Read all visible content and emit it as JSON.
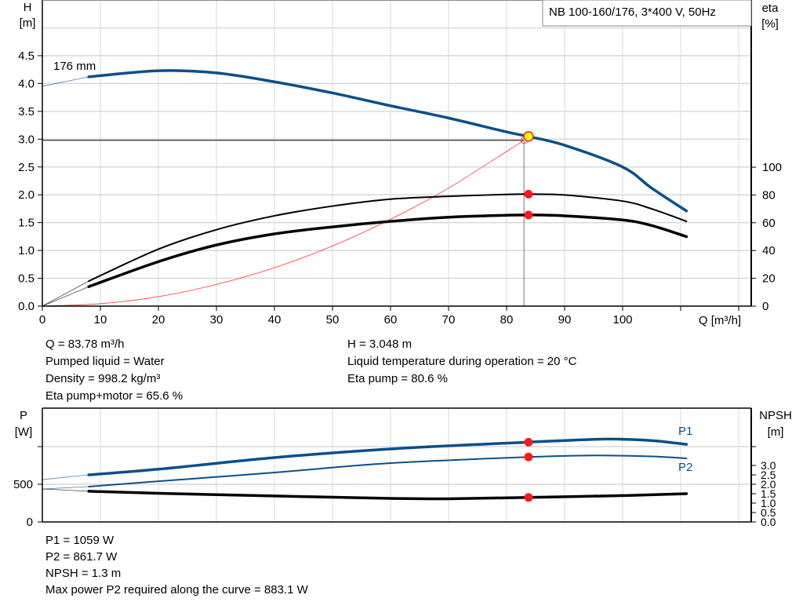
{
  "colors": {
    "head": "#0b4f8a",
    "eta": "#000000",
    "system": "#ff3333",
    "marker": "#ff1a1a",
    "op_point": "#ffff00",
    "grid": "#d9d9d9",
    "power": "#0b4f8a",
    "npsh": "#000000"
  },
  "chart_data": [
    {
      "type": "line",
      "title": "NB 100-160/176, 3*400 V, 50Hz",
      "xlabel": "Q [m³/h]",
      "ylabel_left": [
        "H",
        "[m]"
      ],
      "ylabel_right": [
        "eta",
        "[%]"
      ],
      "xlim": [
        0,
        122
      ],
      "ylim_left": [
        0,
        5.5
      ],
      "ylim_right": [
        0,
        310
      ],
      "xticks": [
        0,
        10,
        20,
        30,
        40,
        50,
        60,
        70,
        80,
        90,
        100,
        110,
        120
      ],
      "xtick_labels": [
        "0",
        "10",
        "20",
        "30",
        "40",
        "50",
        "60",
        "70",
        "80",
        "90",
        "100",
        "",
        ""
      ],
      "yticks_left": [
        "0.0",
        "0.5",
        "1.0",
        "1.5",
        "2.0",
        "2.5",
        "3.0",
        "3.5",
        "4.0",
        "4.5"
      ],
      "yticks_right": [
        "0",
        "20",
        "40",
        "60",
        "80",
        "100"
      ],
      "grid": true,
      "curve_label": "176 mm",
      "series": [
        {
          "id": "head",
          "axis": "left",
          "extrapolated": [
            [
              0,
              3.95
            ],
            [
              8,
              4.12
            ]
          ],
          "points": [
            [
              8,
              4.12
            ],
            [
              20,
              4.23
            ],
            [
              30,
              4.19
            ],
            [
              40,
              4.03
            ],
            [
              50,
              3.83
            ],
            [
              60,
              3.6
            ],
            [
              70,
              3.38
            ],
            [
              80,
              3.13
            ],
            [
              83.78,
              3.048
            ],
            [
              90,
              2.89
            ],
            [
              100,
              2.5
            ],
            [
              105,
              2.12
            ],
            [
              111,
              1.71
            ]
          ]
        },
        {
          "id": "eta-pump",
          "axis": "right",
          "extrapolated": [
            [
              0,
              0
            ],
            [
              8,
              18
            ]
          ],
          "points": [
            [
              8,
              18
            ],
            [
              20,
              41
            ],
            [
              30,
              55
            ],
            [
              40,
              65
            ],
            [
              50,
              72
            ],
            [
              60,
              77
            ],
            [
              70,
              79
            ],
            [
              80,
              80.4
            ],
            [
              83.78,
              80.6
            ],
            [
              90,
              80
            ],
            [
              100,
              75.6
            ],
            [
              105,
              70
            ],
            [
              111,
              61
            ]
          ]
        },
        {
          "id": "eta-pump-motor",
          "axis": "right",
          "extrapolated": [
            [
              0,
              0
            ],
            [
              8,
              14
            ]
          ],
          "points": [
            [
              8,
              14
            ],
            [
              20,
              32
            ],
            [
              30,
              44
            ],
            [
              40,
              52
            ],
            [
              50,
              57
            ],
            [
              60,
              61
            ],
            [
              70,
              64
            ],
            [
              80,
              65.4
            ],
            [
              83.78,
              65.6
            ],
            [
              90,
              65
            ],
            [
              100,
              62
            ],
            [
              105,
              58
            ],
            [
              111,
              50
            ]
          ]
        },
        {
          "id": "system",
          "axis": "left",
          "points": [
            [
              0,
              0
            ],
            [
              10,
              0.043
            ],
            [
              20,
              0.17
            ],
            [
              30,
              0.39
            ],
            [
              40,
              0.69
            ],
            [
              50,
              1.08
            ],
            [
              60,
              1.56
            ],
            [
              70,
              2.12
            ],
            [
              83,
              2.98
            ]
          ]
        }
      ],
      "operating_point": {
        "Q": 83.78,
        "H": 3.048,
        "eta_pump": 80.6,
        "eta_pump_motor": 65.6
      },
      "system_end": {
        "Q": 83,
        "H": 2.98
      }
    },
    {
      "type": "line",
      "ylabel_left": [
        "P",
        "[W]"
      ],
      "ylabel_right": [
        "NPSH",
        "[m]"
      ],
      "xlim": [
        0,
        122
      ],
      "ylim_left": [
        0,
        1500
      ],
      "ylim_right": [
        0,
        6.0
      ],
      "yticks_left": [
        "0",
        "500",
        ""
      ],
      "yticks_right": [
        "0.0",
        "0.5",
        "1.0",
        "1.5",
        "2.0",
        "2.5",
        "3.0",
        ""
      ],
      "grid": true,
      "series": [
        {
          "id": "P1",
          "name": "P1",
          "axis": "left",
          "extrapolated": [
            [
              0,
              562
            ],
            [
              8,
              625
            ]
          ],
          "points": [
            [
              8,
              625
            ],
            [
              20,
              700
            ],
            [
              40,
              854
            ],
            [
              60,
              969
            ],
            [
              83.78,
              1059
            ],
            [
              97,
              1100
            ],
            [
              105,
              1080
            ],
            [
              111,
              1030
            ]
          ]
        },
        {
          "id": "P2",
          "name": "P2",
          "axis": "left",
          "extrapolated": [
            [
              0,
              437
            ],
            [
              8,
              469
            ]
          ],
          "points": [
            [
              8,
              469
            ],
            [
              20,
              540
            ],
            [
              40,
              656
            ],
            [
              60,
              781
            ],
            [
              83.78,
              861.7
            ],
            [
              95,
              883
            ],
            [
              105,
              870
            ],
            [
              111,
              844
            ]
          ]
        },
        {
          "id": "NPSH",
          "axis": "right",
          "extrapolated": [
            [
              0,
              1.75
            ],
            [
              8,
              1.63
            ]
          ],
          "points": [
            [
              8,
              1.63
            ],
            [
              20,
              1.52
            ],
            [
              40,
              1.38
            ],
            [
              60,
              1.25
            ],
            [
              70,
              1.23
            ],
            [
              83.78,
              1.3
            ],
            [
              100,
              1.4
            ],
            [
              111,
              1.5
            ]
          ]
        }
      ],
      "operating_point": {
        "Q": 83.78,
        "P1": 1059,
        "P2": 861.7,
        "NPSH": 1.3
      }
    }
  ],
  "results_top": {
    "left": [
      "Q = 83.78 m³/h",
      "Pumped liquid = Water",
      "Density = 998.2 kg/m³",
      "Eta pump+motor = 65.6 %"
    ],
    "right": [
      "H = 3.048 m",
      "Liquid temperature during operation = 20 °C",
      "Eta pump = 80.6 %"
    ]
  },
  "results_bottom": [
    "P1 = 1059 W",
    "P2 = 861.7 W",
    "NPSH = 1.3 m",
    "Max power P2 required along the curve = 883.1 W"
  ]
}
